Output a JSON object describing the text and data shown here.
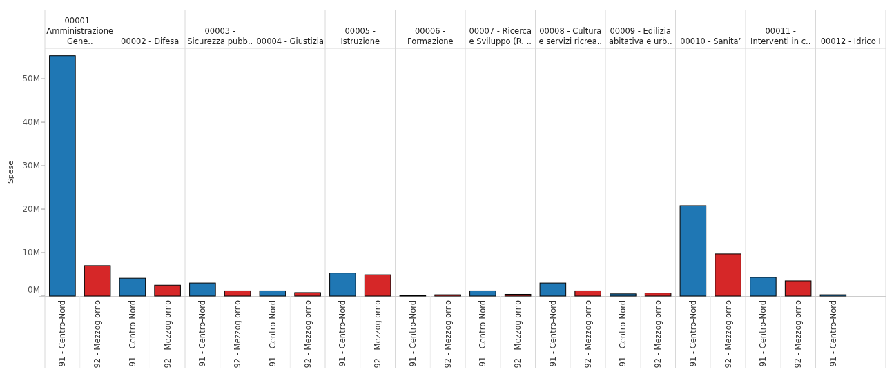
{
  "chart_data": {
    "type": "bar",
    "ylabel": "Spese",
    "categories": [
      "00001 - Amministrazione Gene..",
      "00002 - Difesa",
      "00003 - Sicurezza pubb..",
      "00004 - Giustizia",
      "00005 - Istruzione",
      "00006 - Formazione",
      "00007 - Ricerca e Sviluppo (R. ..",
      "00008 - Cultura e servizi ricrea..",
      "00009 - Edilizia abitativa e urb..",
      "00010 - Sanita’",
      "00011 - Interventi in c..",
      "00012 - Idrico I"
    ],
    "series": [
      {
        "name": "91 - Centro-Nord",
        "color": "#1f77b4",
        "values": [
          55300000,
          4100000,
          3000000,
          1200000,
          5300000,
          100000,
          1200000,
          3000000,
          500000,
          20800000,
          4300000,
          300000
        ]
      },
      {
        "name": "92 - Mezzogiorno",
        "color": "#d62728",
        "values": [
          7000000,
          2500000,
          1200000,
          800000,
          4900000,
          300000,
          400000,
          1200000,
          700000,
          9700000,
          3500000,
          null
        ]
      }
    ],
    "ylim": [
      0,
      57000000
    ],
    "yticks": [
      {
        "value": 0,
        "label": "0M"
      },
      {
        "value": 10000000,
        "label": "10M"
      },
      {
        "value": 20000000,
        "label": "20M"
      },
      {
        "value": 30000000,
        "label": "30M"
      },
      {
        "value": 40000000,
        "label": "40M"
      },
      {
        "value": 50000000,
        "label": "50M"
      }
    ],
    "grid": false
  }
}
